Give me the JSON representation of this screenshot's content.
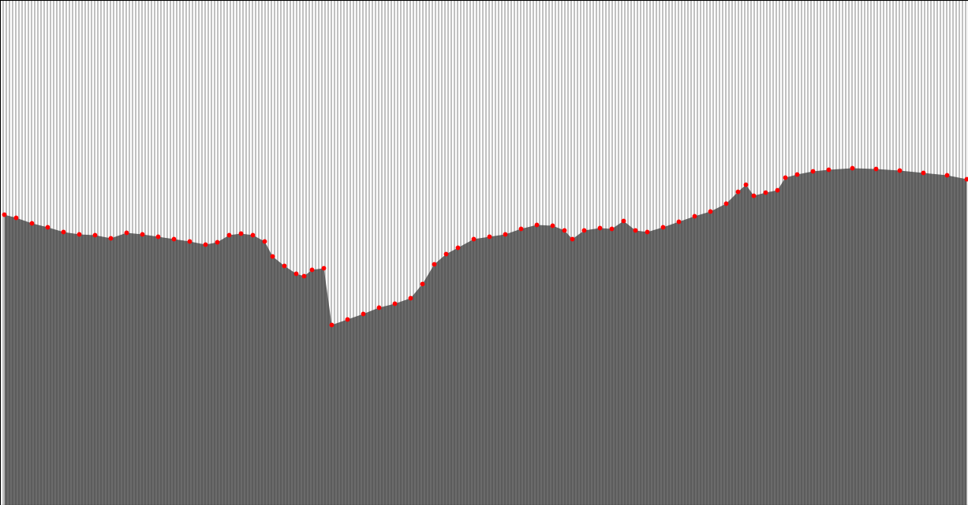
{
  "chart_data": {
    "type": "scatter",
    "x": [
      5,
      20,
      40,
      60,
      80,
      100,
      120,
      140,
      160,
      180,
      200,
      220,
      240,
      260,
      275,
      290,
      305,
      320,
      335,
      345,
      360,
      375,
      385,
      395,
      410,
      420,
      440,
      460,
      480,
      500,
      520,
      535,
      550,
      565,
      580,
      600,
      620,
      640,
      660,
      680,
      700,
      715,
      725,
      740,
      760,
      775,
      790,
      805,
      820,
      840,
      860,
      880,
      900,
      920,
      935,
      945,
      955,
      970,
      985,
      995,
      1010,
      1030,
      1050,
      1080,
      1110,
      1140,
      1170,
      1200,
      1225
    ],
    "values": [
      272,
      276,
      283,
      288,
      294,
      297,
      298,
      302,
      295,
      297,
      300,
      303,
      306,
      310,
      307,
      298,
      296,
      298,
      306,
      325,
      337,
      347,
      350,
      342,
      340,
      412,
      405,
      398,
      390,
      385,
      378,
      360,
      335,
      322,
      314,
      303,
      300,
      297,
      290,
      285,
      286,
      292,
      303,
      292,
      289,
      290,
      280,
      292,
      294,
      288,
      281,
      274,
      268,
      258,
      243,
      234,
      248,
      244,
      241,
      225,
      221,
      217,
      215,
      213,
      214,
      216,
      219,
      222,
      227
    ],
    "color": "#ff0000",
    "marker": "o",
    "xlim": [
      0,
      1227
    ],
    "ylim": [
      641,
      0
    ],
    "xticks": [],
    "yticks": [],
    "tick_labels": false,
    "grid": false
  }
}
